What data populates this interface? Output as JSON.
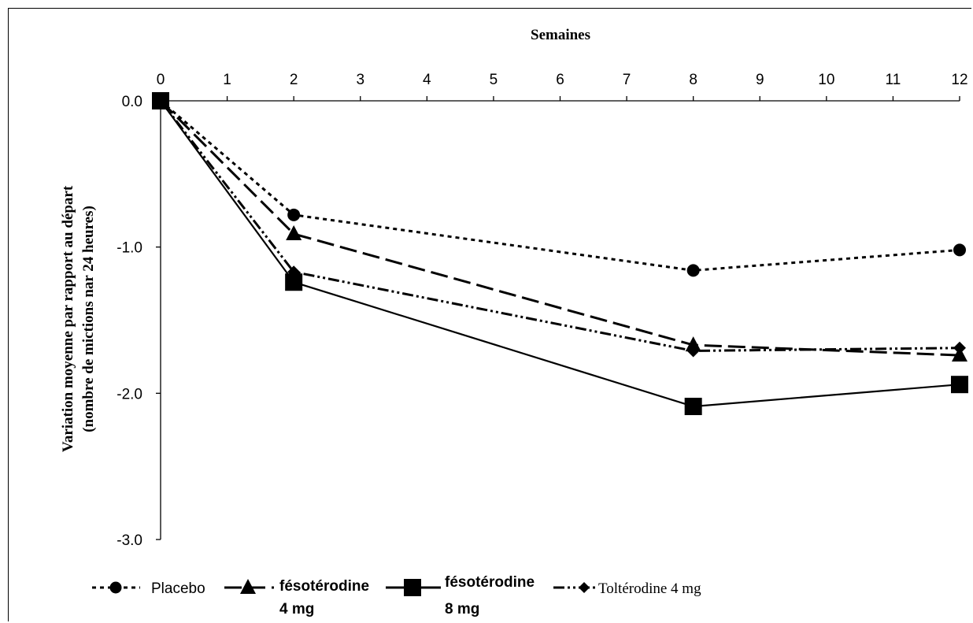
{
  "chart_data": {
    "type": "line",
    "title": "",
    "xlabel": "Semaines",
    "ylabel_line1": "Variation moyenne par rapport au départ",
    "ylabel_line2": "(nombre de mictions nar 24 heures)",
    "x_ticks": [
      "0",
      "1",
      "2",
      "3",
      "4",
      "5",
      "6",
      "7",
      "8",
      "9",
      "10",
      "11",
      "12"
    ],
    "y_ticks": [
      "0.0",
      "-1.0",
      "-2.0",
      "-3.0"
    ],
    "xlim": [
      0,
      12
    ],
    "ylim": [
      -3.0,
      0.0
    ],
    "x_axis_position": "top",
    "grid": false,
    "legend_position": "bottom",
    "series": [
      {
        "name": "Placebo",
        "marker": "circle",
        "dash": "dotted",
        "x": [
          0,
          2,
          8,
          12
        ],
        "y": [
          0.0,
          -0.78,
          -1.16,
          -1.02
        ]
      },
      {
        "name": "fésotérodine 4 mg",
        "marker": "triangle",
        "dash": "long-dash",
        "x": [
          0,
          2,
          8,
          12
        ],
        "y": [
          0.0,
          -0.91,
          -1.67,
          -1.74
        ]
      },
      {
        "name": "fésotérodine 8 mg",
        "marker": "square",
        "dash": "solid",
        "x": [
          0,
          2,
          8,
          12
        ],
        "y": [
          0.0,
          -1.24,
          -2.09,
          -1.94
        ]
      },
      {
        "name": "Toltérodine 4 mg",
        "marker": "diamond",
        "dash": "dash-dot-dot",
        "x": [
          0,
          2,
          8,
          12
        ],
        "y": [
          0.0,
          -1.17,
          -1.71,
          -1.69
        ]
      }
    ]
  },
  "legend": {
    "placebo": "Placebo",
    "feso4_line1": "fésotérodine",
    "feso4_line2": "4 mg",
    "feso8_line1": "fésotérodine",
    "feso8_line2": "8 mg",
    "tolt": "Toltérodine 4 mg"
  }
}
